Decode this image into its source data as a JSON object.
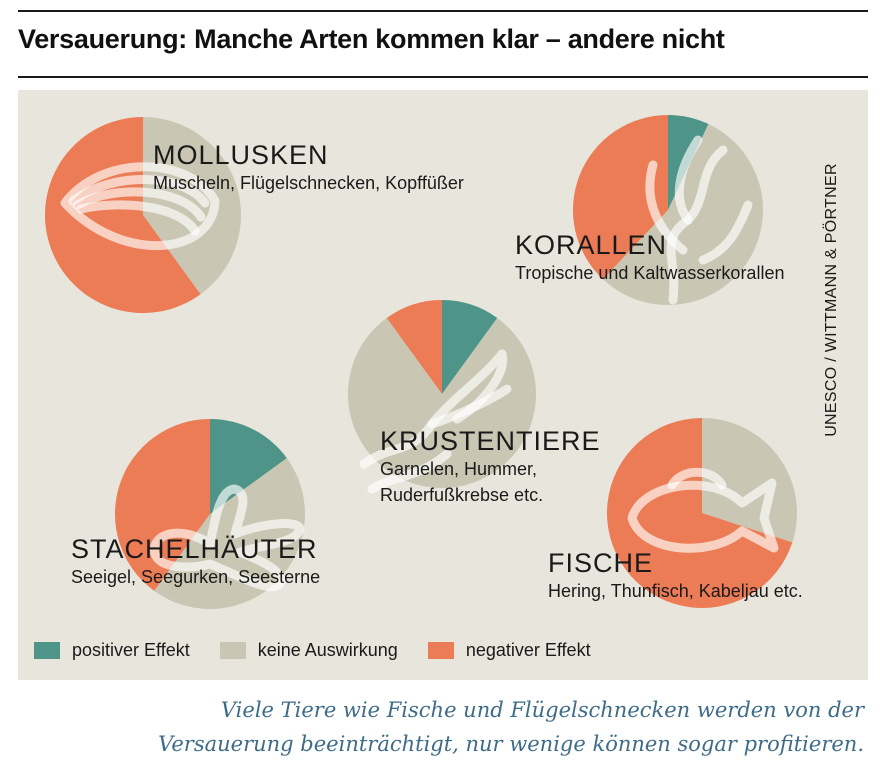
{
  "title": "Versauerung: Manche Arten kommen klar – andere nicht",
  "credit": "UNESCO / WITTMANN & PÖRTNER",
  "caption": {
    "line1": "Viele Tiere wie Fische und Flügelschnecken werden von der",
    "line2": "Versauerung beeinträchtigt, nur wenige können sogar profitieren."
  },
  "colors": {
    "positive": "#4e9488",
    "neutral": "#c9c6b3",
    "negative": "#ec7c55",
    "background": "#e8e6dc",
    "caption": "#3e6c88"
  },
  "legend": [
    {
      "label": "positiver Effekt",
      "color": "#4e9488"
    },
    {
      "label": "keine Auswirkung",
      "color": "#c9c6b3"
    },
    {
      "label": "negativer Effekt",
      "color": "#ec7c55"
    }
  ],
  "chart_data": {
    "type": "pie",
    "title": "Versauerung: Manche Arten kommen klar – andere nicht",
    "categories": [
      "positiver Effekt",
      "keine Auswirkung",
      "negativer Effekt"
    ],
    "series": [
      {
        "name": "MOLLUSKEN",
        "subtitle": "Muscheln, Flügelschnecken, Kopffüßer",
        "icon": "clam-icon",
        "values": [
          0,
          40,
          60
        ]
      },
      {
        "name": "KORALLEN",
        "subtitle": "Tropische und Kaltwasserkorallen",
        "icon": "coral-icon",
        "values": [
          7,
          55,
          38
        ]
      },
      {
        "name": "KRUSTENTIERE",
        "subtitle1": "Garnelen, Hummer,",
        "subtitle2": "Ruderfußkrebse etc.",
        "icon": "lobster-claw-icon",
        "values": [
          10,
          80,
          10
        ]
      },
      {
        "name": "STACHELHÄUTER",
        "subtitle": "Seeigel, Seegurken, Seesterne",
        "icon": "starfish-icon",
        "values": [
          15,
          45,
          40
        ]
      },
      {
        "name": "FISCHE",
        "subtitle": "Hering, Thunfisch, Kabeljau etc.",
        "icon": "fish-icon",
        "values": [
          0,
          30,
          70
        ]
      }
    ]
  }
}
